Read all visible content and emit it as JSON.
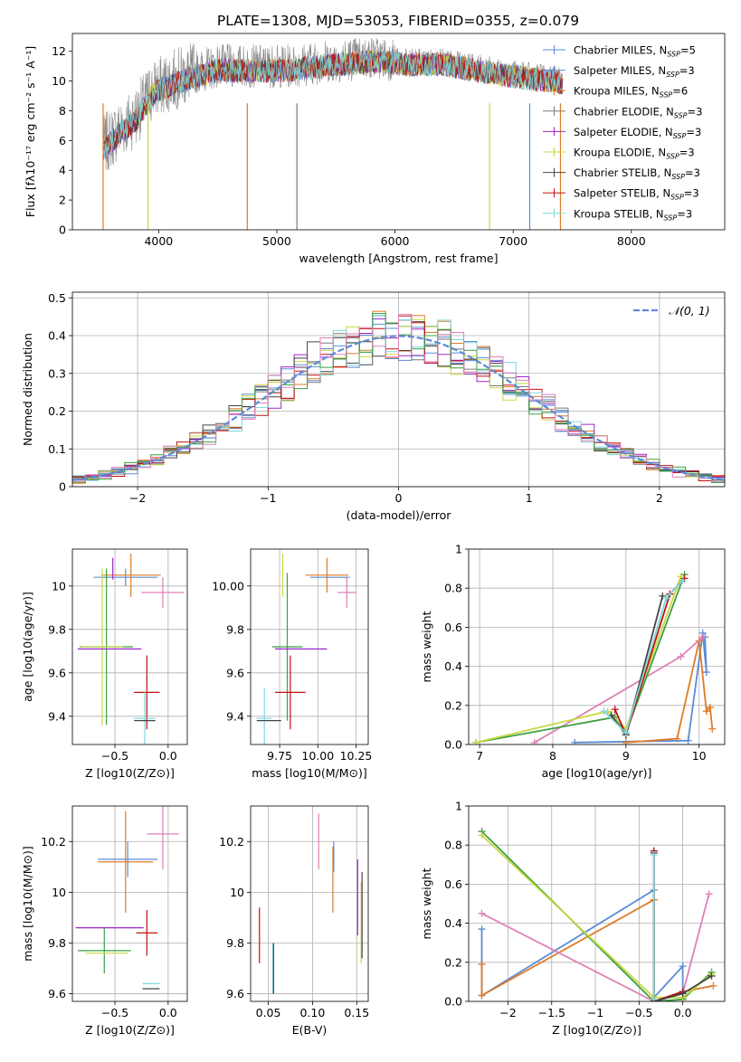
{
  "figure": {
    "title": "PLATE=1308, MJD=53053, FIBERID=0355, z=0.079"
  },
  "palette": {
    "Chabrier MILES": "#5b8bd6",
    "Salpeter MILES": "#5b8bd6",
    "Kroupa MILES": "#e07b26",
    "Chabrier ELODIE": "#7a7a7a",
    "Salpeter ELODIE": "#9a28c8",
    "Kroupa ELODIE": "#c8d840",
    "Chabrier STELIB": "#444444",
    "Salpeter STELIB": "#c01010",
    "Kroupa STELIB": "#7fd8dc",
    "green": "#3aa040",
    "pink": "#e080b8"
  },
  "chart_data": [
    {
      "id": "spectrum",
      "type": "line",
      "xlabel": "wavelength [Angstrom, rest frame]",
      "ylabel": "Flux [fλ10⁻¹⁷ erg cm⁻² s⁻¹ A⁻¹]",
      "xlim": [
        3270,
        8790
      ],
      "ylim": [
        0,
        13.2
      ],
      "xticks": [
        4000,
        5000,
        6000,
        7000,
        8000
      ],
      "yticks": [
        0,
        2,
        4,
        6,
        8,
        10,
        12
      ],
      "legend_position": "top-right",
      "continuum": [
        [
          3530,
          5.6
        ],
        [
          3650,
          6.6
        ],
        [
          3800,
          7.6
        ],
        [
          3950,
          9.4
        ],
        [
          4100,
          10.0
        ],
        [
          4300,
          10.6
        ],
        [
          4500,
          11.0
        ],
        [
          4800,
          11.0
        ],
        [
          5100,
          11.0
        ],
        [
          5500,
          11.4
        ],
        [
          5800,
          11.6
        ],
        [
          6100,
          11.4
        ],
        [
          6400,
          11.4
        ],
        [
          6700,
          11.0
        ],
        [
          7000,
          10.6
        ],
        [
          7200,
          10.4
        ],
        [
          7400,
          10.2
        ]
      ],
      "series": [
        {
          "name": "Chabrier MILES, N_SSP=5",
          "color": "#5b8bd6"
        },
        {
          "name": "Salpeter MILES, N_SSP=3",
          "color": "#5b8bd6"
        },
        {
          "name": "Kroupa MILES, N_SSP=6",
          "color": "#e07b26"
        },
        {
          "name": "Chabrier ELODIE, N_SSP=3",
          "color": "#7a7a7a"
        },
        {
          "name": "Salpeter ELODIE, N_SSP=3",
          "color": "#9a28c8"
        },
        {
          "name": "Kroupa ELODIE, N_SSP=3",
          "color": "#c8d840"
        },
        {
          "name": "Chabrier STELIB, N_SSP=3",
          "color": "#444444"
        },
        {
          "name": "Salpeter STELIB, N_SSP=3",
          "color": "#c01010"
        },
        {
          "name": "Kroupa STELIB, N_SSP=3",
          "color": "#7fd8dc"
        }
      ],
      "legend": [
        {
          "label": "Chabrier MILES, N",
          "sub": "SSP",
          "tail": "=5",
          "color": "#5b8bd6"
        },
        {
          "label": "Salpeter MILES, N",
          "sub": "SSP",
          "tail": "=3",
          "color": "#5b8bd6"
        },
        {
          "label": "Kroupa MILES, N",
          "sub": "SSP",
          "tail": "=6",
          "color": "#e07b26"
        },
        {
          "label": "Chabrier ELODIE, N",
          "sub": "SSP",
          "tail": "=3",
          "color": "#7a7a7a"
        },
        {
          "label": "Salpeter ELODIE, N",
          "sub": "SSP",
          "tail": "=3",
          "color": "#9a28c8"
        },
        {
          "label": "Kroupa ELODIE, N",
          "sub": "SSP",
          "tail": "=3",
          "color": "#c8d840"
        },
        {
          "label": "Chabrier STELIB, N",
          "sub": "SSP",
          "tail": "=3",
          "color": "#444444"
        },
        {
          "label": "Salpeter STELIB, N",
          "sub": "SSP",
          "tail": "=3",
          "color": "#c01010"
        },
        {
          "label": "Kroupa STELIB, N",
          "sub": "SSP",
          "tail": "=3",
          "color": "#7fd8dc"
        }
      ],
      "drops": [
        {
          "x": 3530,
          "color": "#e07b26"
        },
        {
          "x": 3910,
          "color": "#c8d840"
        },
        {
          "x": 4750,
          "color": "#e07b26"
        },
        {
          "x": 5170,
          "color": "#7a7a7a"
        },
        {
          "x": 6800,
          "color": "#c8d840"
        },
        {
          "x": 7140,
          "color": "#5b8bd6"
        },
        {
          "x": 7400,
          "color": "#e07b26"
        }
      ]
    },
    {
      "id": "residual-histogram",
      "type": "line",
      "xlabel": "(data-model)/error",
      "ylabel": "Normed distribution",
      "xlim": [
        -2.5,
        2.5
      ],
      "ylim": [
        0,
        0.515
      ],
      "xticks": [
        -2,
        -1,
        0,
        1,
        2
      ],
      "yticks": [
        0.0,
        0.1,
        0.2,
        0.3,
        0.4,
        0.5
      ],
      "bin_width": 0.1,
      "normal_label": "𝒩(0, 1)",
      "normal_color": "#5b8bd6",
      "legend_position": "top-right"
    },
    {
      "id": "age-vs-Z",
      "type": "scatter",
      "xlabel": "Z [log10(Z/Z⊙)]",
      "ylabel": "age  [log10(age/yr)]",
      "xlim": [
        -0.9,
        0.18
      ],
      "ylim": [
        9.27,
        10.17
      ],
      "xticks": [
        -0.5,
        0.0
      ],
      "yticks": [
        9.4,
        9.6,
        9.8,
        10.0
      ],
      "points": [
        {
          "x": -0.4,
          "y": 10.04,
          "xerr": 0.3,
          "yerr": 0.04,
          "color": "#5b8bd6"
        },
        {
          "x": -0.35,
          "y": 10.05,
          "xerr": 0.28,
          "yerr": 0.1,
          "color": "#e07b26"
        },
        {
          "x": -0.05,
          "y": 9.97,
          "xerr": 0.2,
          "yerr": 0.07,
          "color": "#e080b8"
        },
        {
          "x": -0.52,
          "y": 10.08,
          "xerr": 0.0,
          "yerr": 0.05,
          "color": "#9a28c8"
        },
        {
          "x": -0.58,
          "y": 9.72,
          "xerr": 0.25,
          "yerr": 0.36,
          "color": "#3aa040"
        },
        {
          "x": -0.62,
          "y": 9.72,
          "xerr": 0.2,
          "yerr": 0.36,
          "color": "#c8d840"
        },
        {
          "x": -0.55,
          "y": 9.71,
          "xerr": 0.3,
          "yerr": 0.0,
          "color": "#9a28c8"
        },
        {
          "x": -0.2,
          "y": 9.51,
          "xerr": 0.12,
          "yerr": 0.17,
          "color": "#c01010"
        },
        {
          "x": -0.22,
          "y": 9.39,
          "xerr": 0.1,
          "yerr": 0.12,
          "color": "#7fd8dc"
        },
        {
          "x": -0.22,
          "y": 9.38,
          "xerr": 0.1,
          "yerr": 0.0,
          "color": "#444444"
        }
      ]
    },
    {
      "id": "age-vs-mass",
      "type": "scatter",
      "xlabel": "mass [log10(M/M⊙)]",
      "ylabel": "",
      "xlim": [
        9.56,
        10.33
      ],
      "ylim": [
        9.27,
        10.17
      ],
      "xticks": [
        9.75,
        10.0,
        10.25
      ],
      "yticks": [
        9.4,
        9.6,
        9.8,
        10.0
      ],
      "points": [
        {
          "x": 10.08,
          "y": 10.04,
          "xerr": 0.13,
          "yerr": 0.0,
          "color": "#5b8bd6"
        },
        {
          "x": 10.06,
          "y": 10.05,
          "xerr": 0.14,
          "yerr": 0.08,
          "color": "#e07b26"
        },
        {
          "x": 10.19,
          "y": 9.97,
          "xerr": 0.06,
          "yerr": 0.07,
          "color": "#e080b8"
        },
        {
          "x": 9.77,
          "y": 10.05,
          "xerr": 0.0,
          "yerr": 0.1,
          "color": "#c8d840"
        },
        {
          "x": 9.8,
          "y": 9.72,
          "xerr": 0.1,
          "yerr": 0.34,
          "color": "#3aa040"
        },
        {
          "x": 9.89,
          "y": 9.71,
          "xerr": 0.17,
          "yerr": 0.0,
          "color": "#9a28c8"
        },
        {
          "x": 9.82,
          "y": 9.51,
          "xerr": 0.1,
          "yerr": 0.17,
          "color": "#c01010"
        },
        {
          "x": 9.65,
          "y": 9.39,
          "xerr": 0.05,
          "yerr": 0.14,
          "color": "#7fd8dc"
        },
        {
          "x": 9.68,
          "y": 9.38,
          "xerr": 0.08,
          "yerr": 0.0,
          "color": "#444444"
        }
      ]
    },
    {
      "id": "massweight-vs-age",
      "type": "line",
      "xlabel": "age  [log10(age/yr)]",
      "ylabel": "mass weight",
      "xlim": [
        6.85,
        10.35
      ],
      "ylim": [
        0,
        1.0
      ],
      "xticks": [
        7,
        8,
        9,
        10
      ],
      "yticks": [
        0.0,
        0.2,
        0.4,
        0.6,
        0.8,
        1.0
      ],
      "series": [
        {
          "color": "#5b8bd6",
          "points": [
            [
              8.3,
              0.01
            ],
            [
              9.85,
              0.02
            ],
            [
              10.05,
              0.57
            ],
            [
              10.1,
              0.37
            ],
            [
              10.08,
              0.55
            ]
          ]
        },
        {
          "color": "#e07b26",
          "points": [
            [
              9.0,
              0.01
            ],
            [
              9.7,
              0.03
            ],
            [
              10.0,
              0.53
            ],
            [
              10.1,
              0.17
            ],
            [
              10.15,
              0.19
            ],
            [
              10.18,
              0.08
            ]
          ]
        },
        {
          "color": "#e080b8",
          "points": [
            [
              7.75,
              0.01
            ],
            [
              9.75,
              0.45
            ],
            [
              10.05,
              0.55
            ]
          ]
        },
        {
          "color": "#3aa040",
          "points": [
            [
              6.95,
              0.01
            ],
            [
              8.85,
              0.14
            ],
            [
              9.0,
              0.06
            ],
            [
              9.8,
              0.87
            ]
          ]
        },
        {
          "color": "#c8d840",
          "points": [
            [
              6.95,
              0.01
            ],
            [
              8.75,
              0.17
            ],
            [
              9.0,
              0.08
            ],
            [
              9.75,
              0.86
            ]
          ]
        },
        {
          "color": "#c01010",
          "points": [
            [
              8.85,
              0.18
            ],
            [
              9.0,
              0.05
            ],
            [
              9.6,
              0.77
            ],
            [
              9.8,
              0.85
            ]
          ]
        },
        {
          "color": "#444444",
          "points": [
            [
              8.8,
              0.15
            ],
            [
              9.0,
              0.05
            ],
            [
              9.5,
              0.76
            ]
          ]
        },
        {
          "color": "#7fd8dc",
          "points": [
            [
              8.7,
              0.17
            ],
            [
              9.0,
              0.06
            ],
            [
              9.55,
              0.75
            ],
            [
              9.78,
              0.84
            ]
          ]
        }
      ]
    },
    {
      "id": "mass-vs-Z",
      "type": "scatter",
      "xlabel": "Z [log10(Z/Z⊙)]",
      "ylabel": "mass [log10(M/M⊙)]",
      "xlim": [
        -0.9,
        0.18
      ],
      "ylim": [
        9.57,
        10.34
      ],
      "xticks": [
        -0.5,
        0.0
      ],
      "yticks": [
        9.6,
        9.8,
        10.0,
        10.2
      ],
      "points": [
        {
          "x": -0.38,
          "y": 10.13,
          "xerr": 0.28,
          "yerr": 0.07,
          "color": "#5b8bd6"
        },
        {
          "x": -0.4,
          "y": 10.12,
          "xerr": 0.26,
          "yerr": 0.2,
          "color": "#e07b26"
        },
        {
          "x": -0.05,
          "y": 10.23,
          "xerr": 0.15,
          "yerr": 0.14,
          "color": "#e080b8"
        },
        {
          "x": -0.55,
          "y": 9.86,
          "xerr": 0.32,
          "yerr": 0.0,
          "color": "#9a28c8"
        },
        {
          "x": -0.6,
          "y": 9.77,
          "xerr": 0.25,
          "yerr": 0.09,
          "color": "#3aa040"
        },
        {
          "x": -0.58,
          "y": 9.76,
          "xerr": 0.2,
          "yerr": 0.0,
          "color": "#c8d840"
        },
        {
          "x": -0.2,
          "y": 9.84,
          "xerr": 0.1,
          "yerr": 0.09,
          "color": "#c01010"
        },
        {
          "x": -0.16,
          "y": 9.64,
          "xerr": 0.08,
          "yerr": 0.0,
          "color": "#7fd8dc"
        },
        {
          "x": -0.16,
          "y": 9.62,
          "xerr": 0.08,
          "yerr": 0.0,
          "color": "#444444"
        }
      ]
    },
    {
      "id": "mass-vs-EBV",
      "type": "scatter",
      "xlabel": "E(B-V)",
      "ylabel": "",
      "xlim": [
        0.03,
        0.163
      ],
      "ylim": [
        9.57,
        10.34
      ],
      "xticks": [
        0.05,
        0.1,
        0.15
      ],
      "yticks": [
        9.6,
        9.8,
        10.0,
        10.2
      ],
      "points": [
        {
          "x": 0.04,
          "y": 9.83,
          "yerr": 0.11,
          "color": "#c01010"
        },
        {
          "x": 0.055,
          "y": 9.7,
          "yerr": 0.1,
          "color": "#7fd8dc"
        },
        {
          "x": 0.056,
          "y": 9.7,
          "yerr": 0.1,
          "color": "#444444"
        },
        {
          "x": 0.107,
          "y": 10.2,
          "yerr": 0.11,
          "color": "#e080b8"
        },
        {
          "x": 0.123,
          "y": 10.05,
          "yerr": 0.13,
          "color": "#e07b26"
        },
        {
          "x": 0.124,
          "y": 10.14,
          "yerr": 0.06,
          "color": "#5b8bd6"
        },
        {
          "x": 0.151,
          "y": 9.98,
          "yerr": 0.15,
          "color": "#9a28c8"
        },
        {
          "x": 0.155,
          "y": 9.88,
          "yerr": 0.16,
          "color": "#c8d840"
        },
        {
          "x": 0.156,
          "y": 9.91,
          "yerr": 0.17,
          "color": "#444444"
        }
      ]
    },
    {
      "id": "massweight-vs-Z",
      "type": "line",
      "xlabel": "Z [log10(Z/Z⊙)]",
      "ylabel": "mass weight",
      "xlim": [
        -2.45,
        0.48
      ],
      "ylim": [
        0,
        1.0
      ],
      "xticks": [
        -2.0,
        -1.5,
        -1.0,
        -0.5,
        0.0
      ],
      "yticks": [
        0.0,
        0.2,
        0.4,
        0.6,
        0.8,
        1.0
      ],
      "series": [
        {
          "color": "#5b8bd6",
          "points": [
            [
              -2.3,
              0.37
            ],
            [
              -2.3,
              0.03
            ],
            [
              -0.33,
              0.57
            ],
            [
              -0.33,
              0.02
            ],
            [
              0.0,
              0.18
            ],
            [
              0.0,
              0.01
            ]
          ]
        },
        {
          "color": "#e07b26",
          "points": [
            [
              -2.3,
              0.19
            ],
            [
              -2.3,
              0.03
            ],
            [
              -0.33,
              0.52
            ],
            [
              -0.33,
              0.0
            ],
            [
              0.0,
              0.05
            ],
            [
              0.35,
              0.08
            ]
          ]
        },
        {
          "color": "#e080b8",
          "points": [
            [
              -2.3,
              0.45
            ],
            [
              -0.33,
              0.0
            ],
            [
              0.0,
              0.04
            ],
            [
              0.3,
              0.55
            ]
          ]
        },
        {
          "color": "#3aa040",
          "points": [
            [
              -2.3,
              0.87
            ],
            [
              -0.33,
              0.0
            ],
            [
              0.0,
              0.01
            ],
            [
              0.33,
              0.15
            ]
          ]
        },
        {
          "color": "#c8d840",
          "points": [
            [
              -2.3,
              0.85
            ],
            [
              -0.33,
              0.02
            ],
            [
              0.0,
              0.02
            ],
            [
              0.33,
              0.14
            ]
          ]
        },
        {
          "color": "#c01010",
          "points": [
            [
              -0.33,
              0.77
            ],
            [
              -0.33,
              0.0
            ],
            [
              0.0,
              0.05
            ]
          ]
        },
        {
          "color": "#444444",
          "points": [
            [
              -0.33,
              0.76
            ],
            [
              -0.33,
              0.0
            ],
            [
              0.0,
              0.04
            ],
            [
              0.33,
              0.13
            ]
          ]
        },
        {
          "color": "#7fd8dc",
          "points": [
            [
              -0.33,
              0.75
            ],
            [
              -0.33,
              0.01
            ]
          ]
        }
      ]
    }
  ]
}
